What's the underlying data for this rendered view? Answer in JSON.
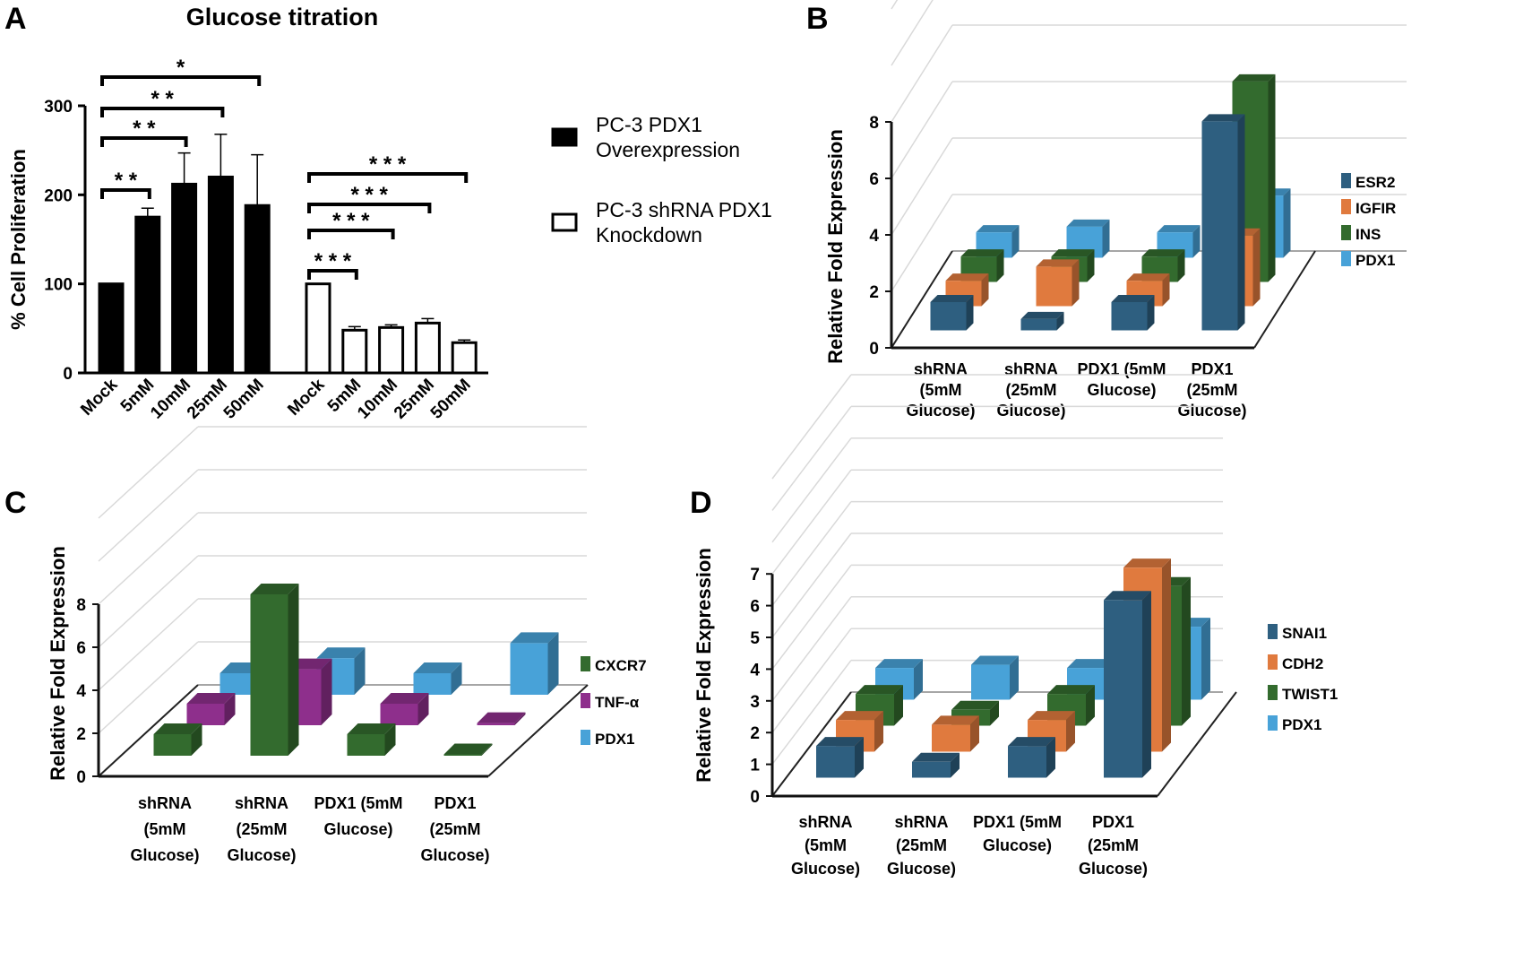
{
  "colors": {
    "ESR2": "#2e5f80",
    "IGFIR": "#e07a3e",
    "INS": "#336b2e",
    "PDX1": "#48a2d8",
    "TNF": "#8e2f8c",
    "SNAI1": "#2e5f80",
    "CDH2": "#e07a3e",
    "TWIST1": "#336b2e",
    "CXCR7": "#336b2e"
  },
  "chart_data": [
    {
      "panel": "A",
      "type": "bar",
      "title": "Glucose titration",
      "ylabel": "% Cell Proliferation",
      "ylim": [
        0,
        300
      ],
      "yticks": [
        "0",
        "100",
        "200",
        "300"
      ],
      "grid": false,
      "legend_placement": "right",
      "legend": [
        {
          "name": "PC-3 PDX1 Overexpression",
          "lines": [
            "PC-3 PDX1",
            "Overexpression"
          ],
          "fill": "black"
        },
        {
          "name": "PC-3 shRNA PDX1 Knockdown",
          "lines": [
            "PC-3 shRNA PDX1",
            "Knockdown"
          ],
          "fill": "white"
        }
      ],
      "groups": [
        {
          "name": "PC-3 PDX1 Overexpression",
          "categories": [
            "Mock",
            "5mM",
            "10mM",
            "25mM",
            "50mM"
          ],
          "values": [
            100,
            175,
            212,
            220,
            188
          ],
          "errors": [
            0,
            10,
            35,
            48,
            57
          ],
          "significance": [
            {
              "from": "Mock",
              "to": "5mM",
              "label": "**"
            },
            {
              "from": "Mock",
              "to": "10mM",
              "label": "**"
            },
            {
              "from": "Mock",
              "to": "25mM",
              "label": "**"
            },
            {
              "from": "Mock",
              "to": "50mM",
              "label": "*"
            }
          ]
        },
        {
          "name": "PC-3 shRNA PDX1 Knockdown",
          "categories": [
            "Mock",
            "5mM",
            "10mM",
            "25mM",
            "50mM"
          ],
          "values": [
            100,
            48,
            51,
            56,
            34
          ],
          "errors": [
            0,
            4,
            3,
            5,
            3
          ],
          "significance": [
            {
              "from": "Mock",
              "to": "5mM",
              "label": "***"
            },
            {
              "from": "Mock",
              "to": "10mM",
              "label": "***"
            },
            {
              "from": "Mock",
              "to": "25mM",
              "label": "***"
            },
            {
              "from": "Mock",
              "to": "50mM",
              "label": "***"
            }
          ]
        }
      ]
    },
    {
      "panel": "B",
      "type": "bar",
      "style": "3d",
      "ylabel": "Relative Fold Expression",
      "ylim": [
        0,
        8
      ],
      "yticks": [
        "0",
        "2",
        "4",
        "6",
        "8"
      ],
      "grid": true,
      "legend_placement": "right",
      "categories": [
        [
          "shRNA",
          "(5mM",
          "Glucose)"
        ],
        [
          "shRNA",
          "(25mM",
          "Glucose)"
        ],
        [
          "PDX1 (5mM",
          "Glucose)"
        ],
        [
          "PDX1",
          "(25mM",
          "Glucose)"
        ]
      ],
      "series": [
        {
          "name": "ESR2",
          "values": [
            1.0,
            0.4,
            1.0,
            7.4
          ]
        },
        {
          "name": "IGFIR",
          "values": [
            0.9,
            1.4,
            0.9,
            2.5
          ]
        },
        {
          "name": "INS",
          "values": [
            0.9,
            0.9,
            0.9,
            7.1
          ]
        },
        {
          "name": "PDX1",
          "values": [
            0.9,
            1.1,
            0.9,
            2.2
          ]
        }
      ]
    },
    {
      "panel": "C",
      "type": "bar",
      "style": "3d",
      "ylabel": "Relative Fold Expression",
      "ylim": [
        0,
        8
      ],
      "yticks": [
        "0",
        "2",
        "4",
        "6",
        "8"
      ],
      "grid": true,
      "legend_placement": "right",
      "categories": [
        [
          "shRNA",
          "(5mM",
          "Glucose)"
        ],
        [
          "shRNA",
          "(25mM",
          "Glucose)"
        ],
        [
          "PDX1 (5mM",
          "Glucose)"
        ],
        [
          "PDX1",
          "(25mM",
          "Glucose)"
        ]
      ],
      "series": [
        {
          "name": "CXCR7",
          "color_key": "CXCR7",
          "values": [
            1.0,
            7.5,
            1.0,
            0.05
          ]
        },
        {
          "name": "TNF-α",
          "color_key": "TNF",
          "values": [
            1.0,
            2.6,
            1.0,
            0.1
          ]
        },
        {
          "name": "PDX1",
          "color_key": "PDX1",
          "values": [
            1.0,
            1.7,
            1.0,
            2.4
          ]
        }
      ]
    },
    {
      "panel": "D",
      "type": "bar",
      "style": "3d",
      "ylabel": "Relative Fold Expression",
      "ylim": [
        0,
        7
      ],
      "yticks": [
        "0",
        "1",
        "2",
        "3",
        "4",
        "5",
        "6",
        "7"
      ],
      "grid": true,
      "legend_placement": "right",
      "categories": [
        [
          "shRNA",
          "(5mM",
          "Glucose)"
        ],
        [
          "shRNA",
          "(25mM",
          "Glucose)"
        ],
        [
          "PDX1 (5mM",
          "Glucose)"
        ],
        [
          "PDX1",
          "(25mM",
          "Glucose)"
        ]
      ],
      "series": [
        {
          "name": "SNAI1",
          "values": [
            1.0,
            0.5,
            1.0,
            5.6
          ]
        },
        {
          "name": "CDH2",
          "values": [
            1.0,
            0.85,
            1.0,
            5.8
          ]
        },
        {
          "name": "TWIST1",
          "values": [
            1.0,
            0.5,
            1.0,
            4.4
          ]
        },
        {
          "name": "PDX1",
          "values": [
            1.0,
            1.1,
            1.0,
            2.3
          ]
        }
      ]
    }
  ]
}
